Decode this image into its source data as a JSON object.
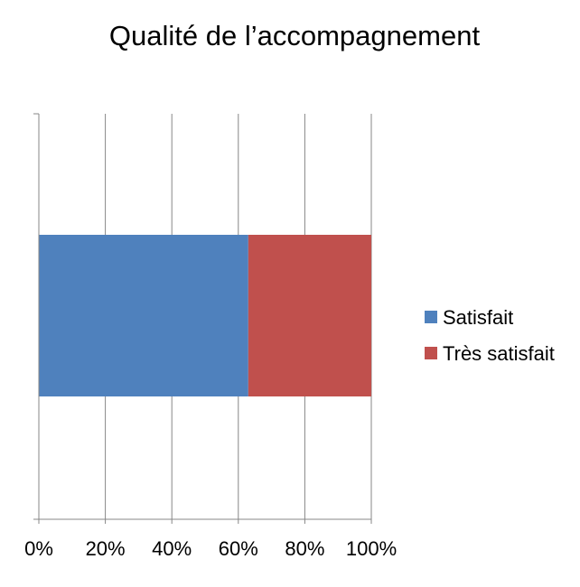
{
  "chart_data": {
    "type": "bar",
    "orientation": "horizontal",
    "stacked": "percent",
    "title": "Qualité de l’accompagnement",
    "categories": [
      ""
    ],
    "series": [
      {
        "name": "Satisfait",
        "values": [
          63
        ],
        "color": "#4F81BD"
      },
      {
        "name": "Très satisfait",
        "values": [
          37
        ],
        "color": "#C0504D"
      }
    ],
    "xlim": [
      0,
      100
    ],
    "x_ticks": [
      "0%",
      "20%",
      "40%",
      "60%",
      "80%",
      "100%"
    ],
    "grid": "vertical",
    "legend_position": "right"
  }
}
